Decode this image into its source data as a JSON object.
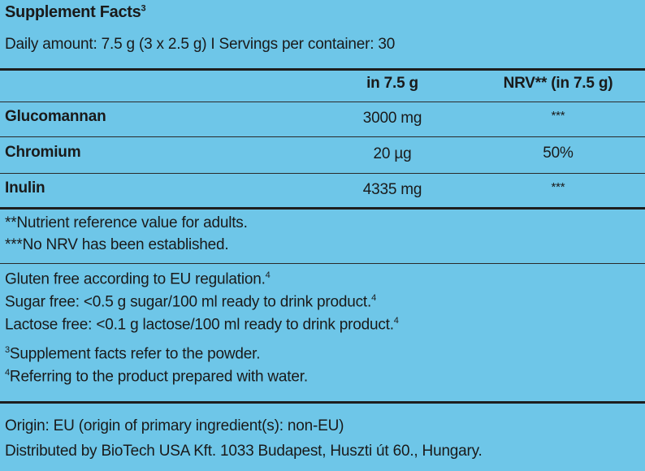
{
  "header": {
    "title": "Supplement Facts",
    "title_ref": "3",
    "daily_amount": "Daily amount: 7.5 g (3 x 2.5 g) I Servings per container: 30"
  },
  "table": {
    "columns": [
      "",
      "in 7.5 g",
      "NRV** (in 7.5 g)"
    ],
    "rows": [
      {
        "name": "Glucomannan",
        "amount": "3000 mg",
        "nrv": "***"
      },
      {
        "name": "Chromium",
        "amount": "20 µg",
        "nrv": "50%"
      },
      {
        "name": "Inulin",
        "amount": "4335 mg",
        "nrv": "***"
      }
    ]
  },
  "footnotes": {
    "nrv_note": "**Nutrient reference value for adults.",
    "no_nrv_note": "***No NRV has been established."
  },
  "claims": {
    "gluten": "Gluten free according to EU regulation.",
    "sugar": "Sugar free: <0.5 g sugar/100 ml ready to drink product.",
    "lactose": "Lactose free: <0.1 g lactose/100 ml ready to drink product.",
    "ref_4": "4"
  },
  "references": {
    "ref3_mark": "3",
    "ref3_text": "Supplement facts refer to the powder.",
    "ref4_mark": "4",
    "ref4_text": "Referring to the product prepared with water."
  },
  "origin": {
    "origin_text": "Origin: EU (origin of primary ingredient(s): non-EU)",
    "distributor": "Distributed by BioTech USA Kft. 1033 Budapest, Huszti út 60., Hungary."
  },
  "colors": {
    "background": "#6ec6e8",
    "text": "#1a1a1a",
    "rules": "#1e1e1e"
  }
}
